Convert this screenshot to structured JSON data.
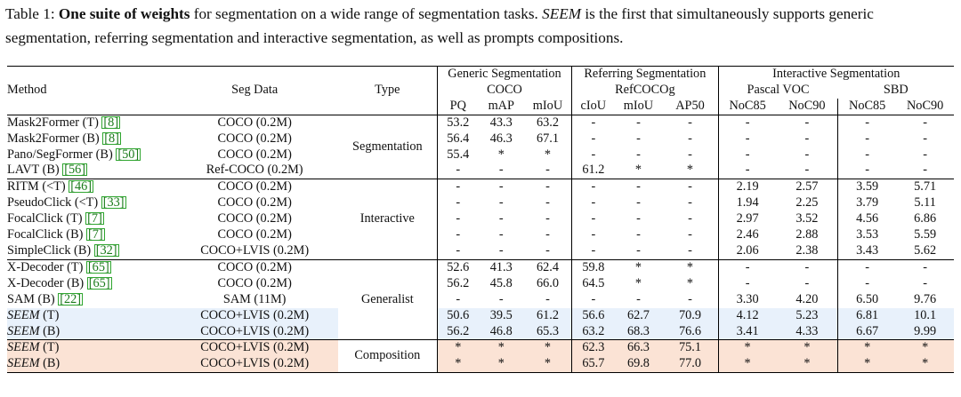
{
  "caption": {
    "label": "Table 1:",
    "bold": "One suite of weights",
    "text1": " for segmentation on a wide range of segmentation tasks. ",
    "model": "SEEM",
    "text2": " is the first that simultaneously supports generic segmentation, referring segmentation and interactive segmentation, as well as prompts compositions."
  },
  "header": {
    "method": "Method",
    "seg_data": "Seg Data",
    "type": "Type",
    "generic": "Generic Segmentation",
    "generic_ds": "COCO",
    "referring": "Referring Segmentation",
    "referring_ds": "RefCOCOg",
    "interactive": "Interactive Segmentation",
    "pascal": "Pascal VOC",
    "sbd": "SBD",
    "metrics": [
      "PQ",
      "mAP",
      "mIoU",
      "cIoU",
      "mIoU",
      "AP50",
      "NoC85",
      "NoC90",
      "NoC85",
      "NoC90"
    ]
  },
  "groups": {
    "segmentation": "Segmentation",
    "interactive": "Interactive",
    "generalist": "Generalist",
    "composition": "Composition"
  },
  "rows": [
    {
      "name": "Mask2Former (T) ",
      "cite": "[8]",
      "data": "COCO (0.2M)",
      "v": [
        "53.2",
        "43.3",
        "63.2",
        "-",
        "-",
        "-",
        "-",
        "-",
        "-",
        "-"
      ]
    },
    {
      "name": "Mask2Former (B) ",
      "cite": "[8]",
      "data": "COCO (0.2M)",
      "v": [
        "56.4",
        "46.3",
        "67.1",
        "-",
        "-",
        "-",
        "-",
        "-",
        "-",
        "-"
      ]
    },
    {
      "name": "Pano/SegFormer (B) ",
      "cite": "[50]",
      "data": "COCO (0.2M)",
      "v": [
        "55.4",
        "*",
        "*",
        "-",
        "-",
        "-",
        "-",
        "-",
        "-",
        "-"
      ]
    },
    {
      "name": "LAVT (B) ",
      "cite": "[56]",
      "data": "Ref-COCO (0.2M)",
      "v": [
        "-",
        "-",
        "-",
        "61.2",
        "*",
        "*",
        "-",
        "-",
        "-",
        "-"
      ]
    },
    {
      "name": "RITM (<T) ",
      "cite": "[46]",
      "data": "COCO (0.2M)",
      "v": [
        "-",
        "-",
        "-",
        "-",
        "-",
        "-",
        "2.19",
        "2.57",
        "3.59",
        "5.71"
      ]
    },
    {
      "name": "PseudoClick (<T) ",
      "cite": "[33]",
      "data": "COCO (0.2M)",
      "v": [
        "-",
        "-",
        "-",
        "-",
        "-",
        "-",
        "1.94",
        "2.25",
        "3.79",
        "5.11"
      ]
    },
    {
      "name": "FocalClick (T) ",
      "cite": "[7]",
      "data": "COCO (0.2M)",
      "v": [
        "-",
        "-",
        "-",
        "-",
        "-",
        "-",
        "2.97",
        "3.52",
        "4.56",
        "6.86"
      ]
    },
    {
      "name": "FocalClick (B) ",
      "cite": "[7]",
      "data": "COCO (0.2M)",
      "v": [
        "-",
        "-",
        "-",
        "-",
        "-",
        "-",
        "2.46",
        "2.88",
        "3.53",
        "5.59"
      ]
    },
    {
      "name": "SimpleClick (B) ",
      "cite": "[32]",
      "data": "COCO+LVIS (0.2M)",
      "v": [
        "-",
        "-",
        "-",
        "-",
        "-",
        "-",
        "2.06",
        "2.38",
        "3.43",
        "5.62"
      ]
    },
    {
      "name": "X-Decoder (T) ",
      "cite": "[65]",
      "data": "COCO (0.2M)",
      "v": [
        "52.6",
        "41.3",
        "62.4",
        "59.8",
        "*",
        "*",
        "-",
        "-",
        "-",
        "-"
      ]
    },
    {
      "name": "X-Decoder (B) ",
      "cite": "[65]",
      "data": "COCO (0.2M)",
      "v": [
        "56.2",
        "45.8",
        "66.0",
        "64.5",
        "*",
        "*",
        "-",
        "-",
        "-",
        "-"
      ]
    },
    {
      "name": "SAM (B) ",
      "cite": "[22]",
      "data": "SAM (11M)",
      "v": [
        "-",
        "-",
        "-",
        "-",
        "-",
        "-",
        "3.30",
        "4.20",
        "6.50",
        "9.76"
      ]
    },
    {
      "name": "SEEM",
      "size": " (T)",
      "data": "COCO+LVIS (0.2M)",
      "v": [
        "50.6",
        "39.5",
        "61.2",
        "56.6",
        "62.7",
        "70.9",
        "4.12",
        "5.23",
        "6.81",
        "10.1"
      ]
    },
    {
      "name": "SEEM",
      "size": " (B)",
      "data": "COCO+LVIS (0.2M)",
      "v": [
        "56.2",
        "46.8",
        "65.3",
        "63.2",
        "68.3",
        "76.6",
        "3.41",
        "4.33",
        "6.67",
        "9.99"
      ]
    },
    {
      "name": "SEEM",
      "size": " (T)",
      "data": "COCO+LVIS (0.2M)",
      "v": [
        "*",
        "*",
        "*",
        "62.3",
        "66.3",
        "75.1",
        "*",
        "*",
        "*",
        "*"
      ]
    },
    {
      "name": "SEEM",
      "size": " (B)",
      "data": "COCO+LVIS (0.2M)",
      "v": [
        "*",
        "*",
        "*",
        "65.7",
        "69.8",
        "77.0",
        "*",
        "*",
        "*",
        "*"
      ]
    }
  ]
}
